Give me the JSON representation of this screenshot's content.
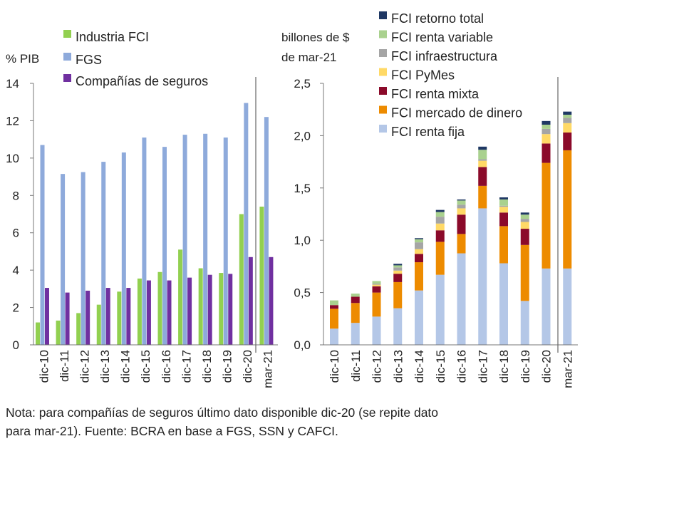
{
  "chart_data": [
    {
      "type": "bar",
      "ylabel": "% PIB",
      "ylim": [
        0,
        14
      ],
      "yticks": [
        "0",
        "2",
        "4",
        "6",
        "8",
        "10",
        "12",
        "14"
      ],
      "categories": [
        "dic-10",
        "dic-11",
        "dic-12",
        "dic-13",
        "dic-14",
        "dic-15",
        "dic-16",
        "dic-17",
        "dic-18",
        "dic-19",
        "dic-20",
        "mar-21"
      ],
      "legend_position": "top",
      "series": [
        {
          "name": "Industria FCI",
          "color": "#92d050",
          "values": [
            1.2,
            1.3,
            1.7,
            2.15,
            2.85,
            3.55,
            3.9,
            5.1,
            4.1,
            3.85,
            7.0,
            7.4
          ]
        },
        {
          "name": "FGS",
          "color": "#8eaadb",
          "values": [
            10.7,
            9.15,
            9.25,
            9.8,
            10.3,
            11.1,
            10.6,
            11.25,
            11.3,
            11.1,
            12.95,
            12.2
          ]
        },
        {
          "name": "Compañías de seguros",
          "color": "#7030a0",
          "values": [
            3.05,
            2.8,
            2.9,
            3.05,
            3.05,
            3.45,
            3.45,
            3.6,
            3.75,
            3.8,
            4.7,
            4.7
          ]
        }
      ]
    },
    {
      "type": "bar",
      "stacked": true,
      "ylabel": "billones de $ de mar-21",
      "ylabel_lines": [
        "billones de $",
        "de mar-21"
      ],
      "ylim": [
        0,
        2.5
      ],
      "yticks": [
        "0,0",
        "0,5",
        "1,0",
        "1,5",
        "2,0",
        "2,5"
      ],
      "categories": [
        "dic-10",
        "dic-11",
        "dic-12",
        "dic-13",
        "dic-14",
        "dic-15",
        "dic-16",
        "dic-17",
        "dic-18",
        "dic-19",
        "dic-20",
        "mar-21"
      ],
      "legend_position": "top",
      "series": [
        {
          "name": "FCI renta fija",
          "color": "#b4c7e7",
          "values": [
            0.155,
            0.21,
            0.27,
            0.35,
            0.52,
            0.67,
            0.875,
            1.305,
            0.78,
            0.42,
            0.73,
            0.73
          ]
        },
        {
          "name": "FCI mercado de dinero",
          "color": "#ed8b00",
          "values": [
            0.19,
            0.19,
            0.23,
            0.25,
            0.27,
            0.315,
            0.185,
            0.215,
            0.355,
            0.535,
            1.01,
            1.13
          ]
        },
        {
          "name": "FCI renta mixta",
          "color": "#8b0a2a",
          "values": [
            0.035,
            0.06,
            0.06,
            0.08,
            0.08,
            0.11,
            0.185,
            0.18,
            0.13,
            0.155,
            0.185,
            0.17
          ]
        },
        {
          "name": "FCI PyMes",
          "color": "#ffd966",
          "values": [
            0,
            0,
            0.015,
            0.03,
            0.045,
            0.065,
            0.06,
            0.06,
            0.055,
            0.065,
            0.09,
            0.09
          ]
        },
        {
          "name": "FCI infraestructura",
          "color": "#a5a5a5",
          "values": [
            0,
            0,
            0.01,
            0.03,
            0.065,
            0.065,
            0.035,
            0.015,
            0.01,
            0.03,
            0.05,
            0.05
          ]
        },
        {
          "name": "FCI renta variable",
          "color": "#a9d18e",
          "values": [
            0.045,
            0.03,
            0.025,
            0.02,
            0.03,
            0.045,
            0.04,
            0.09,
            0.06,
            0.04,
            0.04,
            0.03
          ]
        },
        {
          "name": "FCI retorno total",
          "color": "#1f3864",
          "values": [
            0,
            0,
            0,
            0.015,
            0.01,
            0.02,
            0.01,
            0.03,
            0.02,
            0.02,
            0.035,
            0.03
          ]
        }
      ]
    }
  ],
  "note": {
    "line1": "Nota: para compañías de seguros último dato disponible dic-20 (se repite dato",
    "line2": "para mar-21). Fuente: BCRA en base a FGS, SSN y CAFCI."
  }
}
